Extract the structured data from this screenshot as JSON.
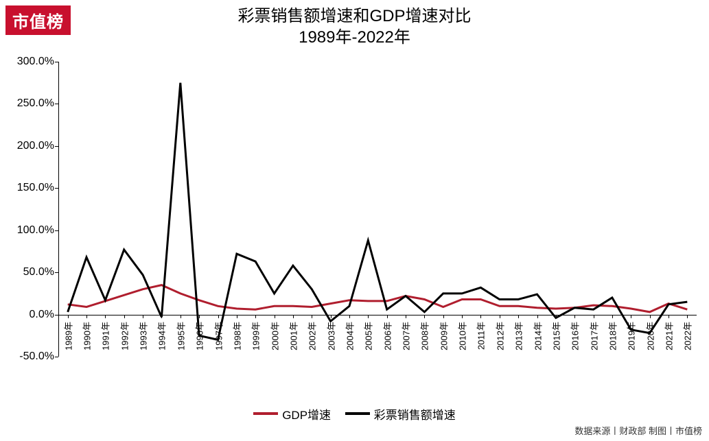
{
  "logo_text": "市值榜",
  "logo_bg": "#c8102e",
  "logo_text_color": "#ffffff",
  "title_line1": "彩票销售额增速和GDP增速对比",
  "title_line2": "1989年-2022年",
  "title_fontsize": 24,
  "chart": {
    "type": "line",
    "background_color": "#ffffff",
    "font_family": "Microsoft YaHei",
    "axis_color": "#000000",
    "y_axis": {
      "min": -50,
      "max": 300,
      "tick_step": 50,
      "tick_format_suffix": ".0%",
      "ticks": [
        -50,
        0,
        50,
        100,
        150,
        200,
        250,
        300
      ],
      "tick_labels": [
        "-50.0%",
        "0.0%",
        "50.0%",
        "100.0%",
        "150.0%",
        "200.0%",
        "250.0%",
        "300.0%"
      ],
      "label_fontsize": 16
    },
    "x_axis": {
      "categories": [
        "1989年",
        "1990年",
        "1991年",
        "1992年",
        "1993年",
        "1994年",
        "1995年",
        "1996年",
        "1997年",
        "1998年",
        "1999年",
        "2000年",
        "2001年",
        "2002年",
        "2003年",
        "2004年",
        "2005年",
        "2006年",
        "2007年",
        "2008年",
        "2009年",
        "2010年",
        "2011年",
        "2012年",
        "2013年",
        "2014年",
        "2015年",
        "2016年",
        "2017年",
        "2018年",
        "2019年",
        "2020年",
        "2021年",
        "2022年"
      ],
      "label_rotation_deg": -90,
      "label_fontsize": 13,
      "axis_at_y": 0
    },
    "series": [
      {
        "name": "GDP增速",
        "color": "#b01e2e",
        "line_width": 3,
        "values": [
          12,
          9,
          16,
          23,
          30,
          35,
          25,
          17,
          10,
          7,
          6,
          10,
          10,
          9,
          13,
          17,
          16,
          16,
          22,
          18,
          9,
          18,
          18,
          10,
          10,
          8,
          7,
          8,
          11,
          10,
          7,
          3,
          13,
          6
        ]
      },
      {
        "name": "彩票销售额增速",
        "color": "#000000",
        "line_width": 3,
        "values": [
          3,
          68,
          17,
          77,
          47,
          -3,
          275,
          -25,
          -30,
          72,
          63,
          25,
          58,
          30,
          -8,
          10,
          88,
          6,
          22,
          3,
          25,
          25,
          32,
          18,
          18,
          24,
          -4,
          8,
          6,
          20,
          -18,
          -22,
          12,
          15
        ]
      }
    ],
    "legend": {
      "items": [
        {
          "label": "GDP增速",
          "color": "#b01e2e"
        },
        {
          "label": "彩票销售额增速",
          "color": "#000000"
        }
      ],
      "fontsize": 17,
      "swatch_width": 36,
      "swatch_height": 4
    }
  },
  "source_note": "数据来源丨财政部 制图丨市值榜",
  "source_note_fontsize": 13
}
